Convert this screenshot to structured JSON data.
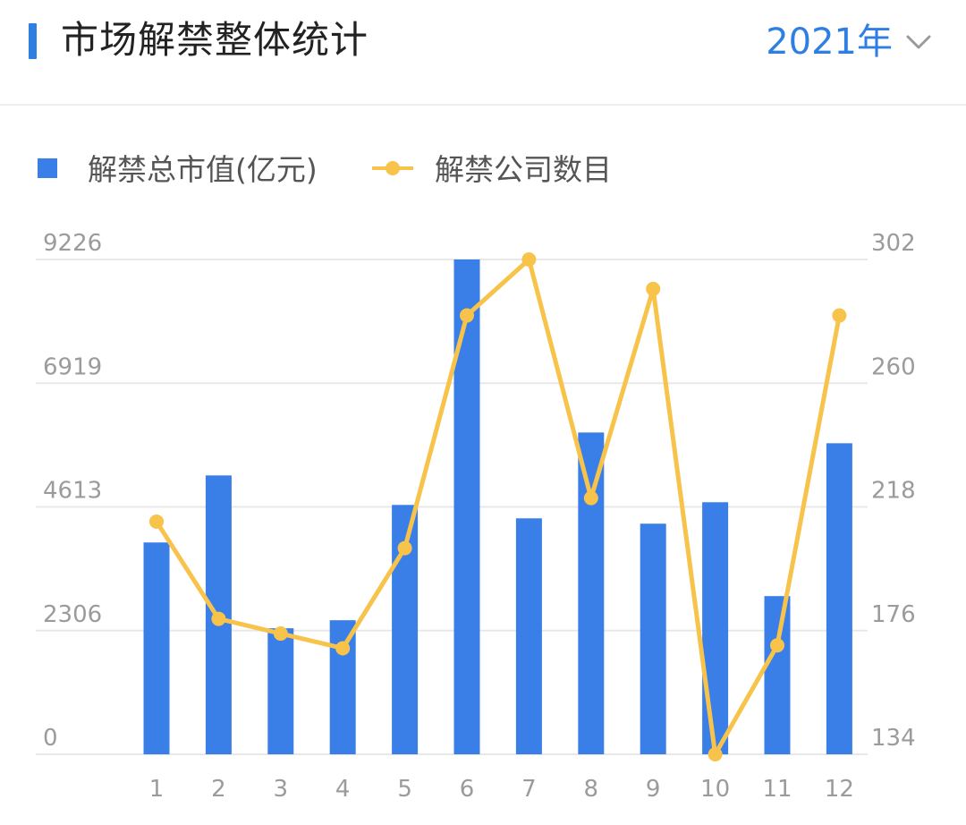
{
  "header": {
    "title": "市场解禁整体统计",
    "year_label": "2021年"
  },
  "colors": {
    "accent": "#2f7fe3",
    "bar": "#3a7fe8",
    "line": "#f8c34a",
    "grid": "#e8e8e8",
    "tick": "#9b9b9b",
    "legend_text": "#555555"
  },
  "icons": {
    "dropdown": "chevron-down-icon"
  },
  "chart_data": {
    "type": "bar",
    "categories": [
      "1",
      "2",
      "3",
      "4",
      "5",
      "6",
      "7",
      "8",
      "9",
      "10",
      "11",
      "12"
    ],
    "series": [
      {
        "name": "解禁总市值(亿元)",
        "type": "bar",
        "axis": "left",
        "values": [
          3950,
          5200,
          2350,
          2500,
          4650,
          9226,
          4400,
          6000,
          4300,
          4700,
          2950,
          5800
        ]
      },
      {
        "name": "解禁公司数目",
        "type": "line",
        "axis": "right",
        "values": [
          213,
          180,
          175,
          170,
          204,
          283,
          302,
          221,
          292,
          134,
          171,
          283
        ]
      }
    ],
    "y_left": {
      "min": 0,
      "max": 9226,
      "ticks": [
        "0",
        "2306",
        "4613",
        "6919",
        "9226"
      ]
    },
    "y_right": {
      "min": 134,
      "max": 302,
      "ticks": [
        "134",
        "176",
        "218",
        "260",
        "302"
      ]
    },
    "legend_position": "top-left",
    "grid": true
  }
}
